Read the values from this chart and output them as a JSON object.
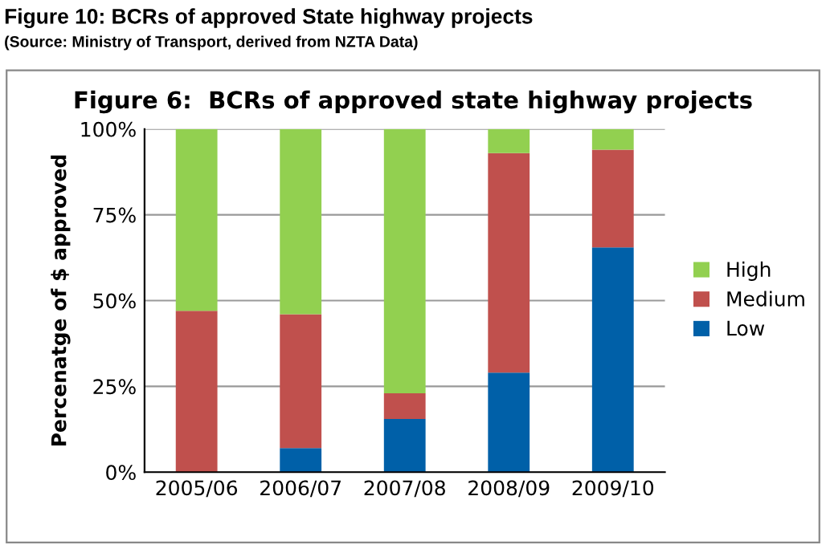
{
  "chart_data": {
    "type": "bar",
    "title": "Figure 10: BCRs of approved State highway projects",
    "subtitle": "Figure 6:  BCRs of approved state highway projects",
    "annotations": [
      "(Source: Ministry of Transport, derived from NZTA Data)"
    ],
    "ylabel": "Percenatge of $ approved",
    "categories": [
      "2005/06",
      "2006/07",
      "2007/08",
      "2008/09",
      "2009/10"
    ],
    "stacked": true,
    "series": [
      {
        "name": "Low",
        "color": "#0060a8",
        "values": [
          0,
          7,
          15.5,
          29,
          65.5
        ]
      },
      {
        "name": "Medium",
        "color": "#c0504d",
        "values": [
          47,
          39,
          7.5,
          64,
          28.5
        ]
      },
      {
        "name": "High",
        "color": "#92d050",
        "values": [
          53,
          54,
          77,
          7,
          6
        ]
      }
    ],
    "ylim": [
      0,
      100
    ],
    "yticks": [
      {
        "value": 0,
        "label": "0%"
      },
      {
        "value": 25,
        "label": "25%"
      },
      {
        "value": 50,
        "label": "50%"
      },
      {
        "value": 75,
        "label": "75%"
      },
      {
        "value": 100,
        "label": "100%"
      }
    ],
    "grid": "y",
    "legend": "right"
  }
}
